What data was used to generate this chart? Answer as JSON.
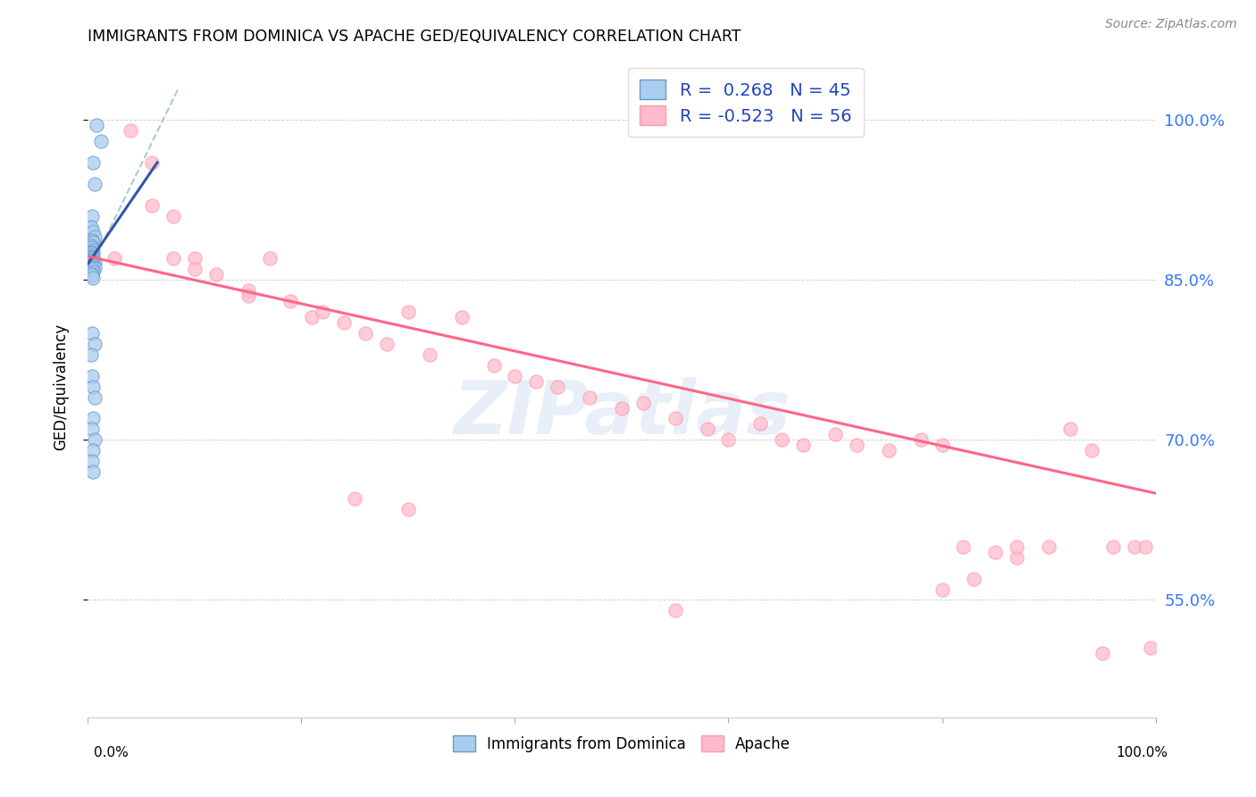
{
  "title": "IMMIGRANTS FROM DOMINICA VS APACHE GED/EQUIVALENCY CORRELATION CHART",
  "source": "Source: ZipAtlas.com",
  "ylabel": "GED/Equivalency",
  "ytick_labels": [
    "100.0%",
    "85.0%",
    "70.0%",
    "55.0%"
  ],
  "ytick_values": [
    1.0,
    0.85,
    0.7,
    0.55
  ],
  "xlim": [
    0.0,
    1.0
  ],
  "ylim": [
    0.44,
    1.06
  ],
  "legend_r1": "R =  0.268",
  "legend_n1": "N = 45",
  "legend_r2": "R = -0.523",
  "legend_n2": "N = 56",
  "color_blue_fill": "#AACCEE",
  "color_blue_edge": "#6699CC",
  "color_pink_fill": "#FFBBCC",
  "color_pink_edge": "#FF99AA",
  "color_pink_line": "#FF6688",
  "color_blue_line": "#3355AA",
  "color_dash_line": "#99BBCC",
  "watermark": "ZIPatlas",
  "blue_scatter_x": [
    0.008,
    0.012,
    0.005,
    0.006,
    0.004,
    0.003,
    0.005,
    0.006,
    0.004,
    0.005,
    0.003,
    0.004,
    0.005,
    0.003,
    0.004,
    0.005,
    0.004,
    0.003,
    0.005,
    0.004,
    0.003,
    0.004,
    0.006,
    0.005,
    0.004,
    0.003,
    0.005,
    0.006,
    0.004,
    0.005,
    0.003,
    0.004,
    0.005,
    0.004,
    0.006,
    0.003,
    0.004,
    0.005,
    0.006,
    0.005,
    0.004,
    0.006,
    0.005,
    0.004,
    0.005
  ],
  "blue_scatter_y": [
    0.995,
    0.98,
    0.96,
    0.94,
    0.91,
    0.9,
    0.895,
    0.89,
    0.887,
    0.885,
    0.882,
    0.88,
    0.878,
    0.876,
    0.875,
    0.874,
    0.872,
    0.871,
    0.87,
    0.869,
    0.868,
    0.867,
    0.866,
    0.865,
    0.864,
    0.863,
    0.862,
    0.861,
    0.86,
    0.858,
    0.856,
    0.854,
    0.852,
    0.8,
    0.79,
    0.78,
    0.76,
    0.75,
    0.74,
    0.72,
    0.71,
    0.7,
    0.69,
    0.68,
    0.67
  ],
  "pink_scatter_x": [
    0.025,
    0.04,
    0.06,
    0.08,
    0.1,
    0.1,
    0.12,
    0.15,
    0.17,
    0.19,
    0.21,
    0.22,
    0.24,
    0.26,
    0.28,
    0.3,
    0.32,
    0.35,
    0.38,
    0.4,
    0.42,
    0.44,
    0.47,
    0.5,
    0.52,
    0.55,
    0.58,
    0.6,
    0.63,
    0.65,
    0.67,
    0.7,
    0.72,
    0.75,
    0.78,
    0.8,
    0.82,
    0.85,
    0.87,
    0.9,
    0.92,
    0.94,
    0.96,
    0.98,
    0.99,
    0.995,
    0.06,
    0.08,
    0.15,
    0.25,
    0.3,
    0.55,
    0.8,
    0.83,
    0.87,
    0.95
  ],
  "pink_scatter_y": [
    0.87,
    0.99,
    0.92,
    0.91,
    0.87,
    0.86,
    0.855,
    0.84,
    0.87,
    0.83,
    0.815,
    0.82,
    0.81,
    0.8,
    0.79,
    0.82,
    0.78,
    0.815,
    0.77,
    0.76,
    0.755,
    0.75,
    0.74,
    0.73,
    0.735,
    0.72,
    0.71,
    0.7,
    0.715,
    0.7,
    0.695,
    0.705,
    0.695,
    0.69,
    0.7,
    0.695,
    0.6,
    0.595,
    0.59,
    0.6,
    0.71,
    0.69,
    0.6,
    0.6,
    0.6,
    0.505,
    0.96,
    0.87,
    0.835,
    0.645,
    0.635,
    0.54,
    0.56,
    0.57,
    0.6,
    0.5
  ],
  "blue_line_x": [
    0.0,
    0.065
  ],
  "blue_line_y": [
    0.865,
    0.96
  ],
  "pink_line_x": [
    0.0,
    1.0
  ],
  "pink_line_y": [
    0.872,
    0.65
  ],
  "dash_line_x": [
    0.0,
    0.085
  ],
  "dash_line_y": [
    0.856,
    1.03
  ]
}
